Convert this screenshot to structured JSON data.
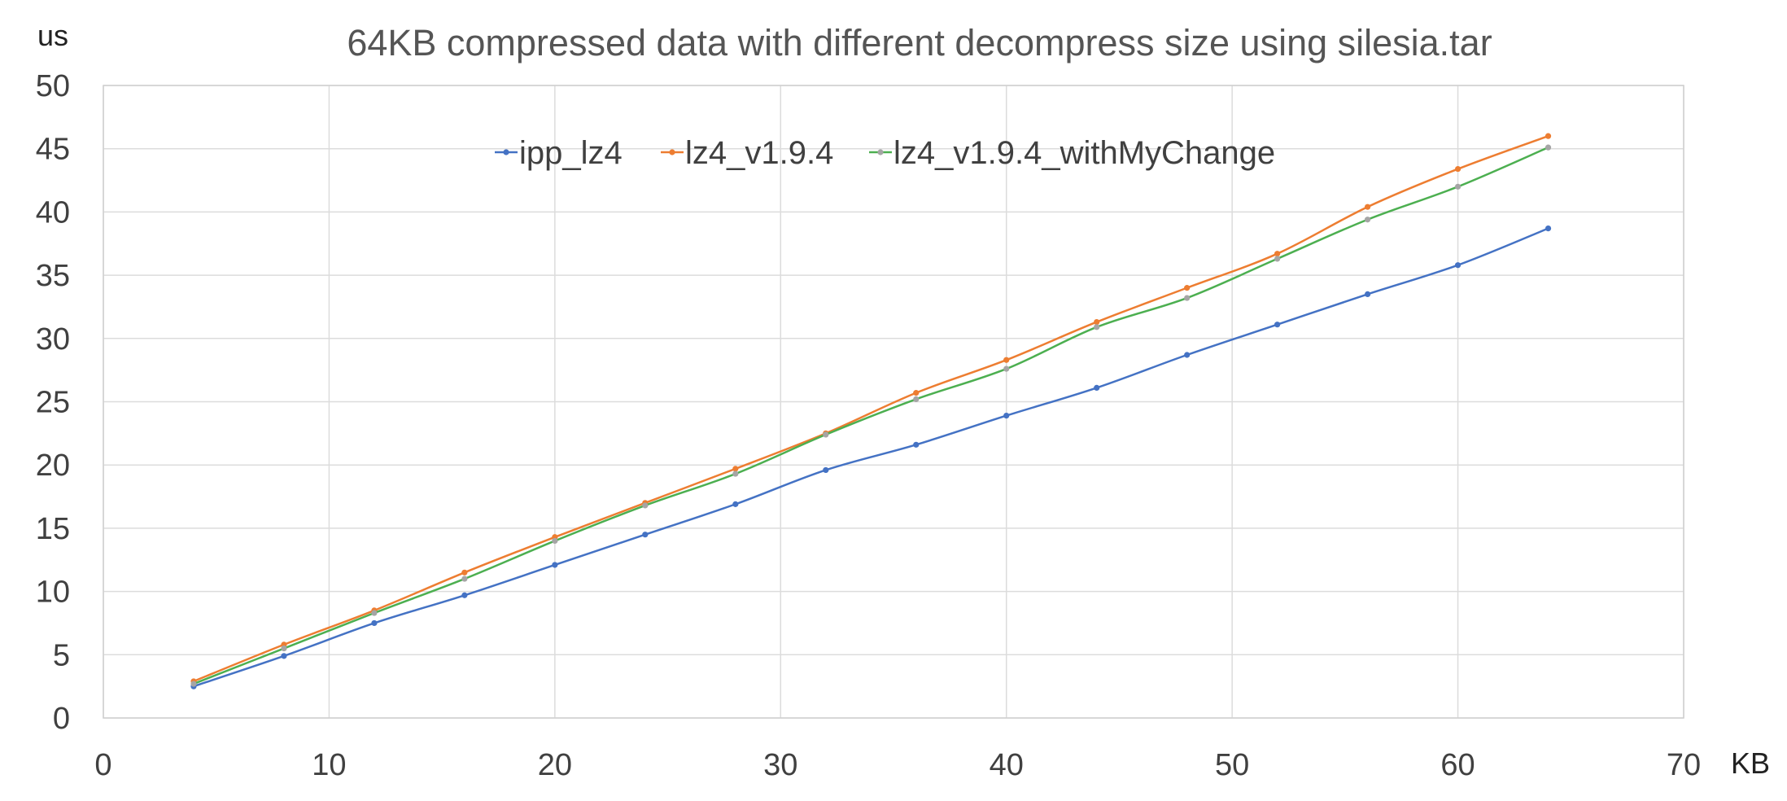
{
  "chart_data": {
    "type": "line",
    "title": "64KB compressed data with different decompress size using silesia.tar",
    "xlabel": "KB",
    "ylabel": "us",
    "xlim": [
      0,
      70
    ],
    "ylim": [
      0,
      50
    ],
    "x_ticks": [
      0,
      10,
      20,
      30,
      40,
      50,
      60,
      70
    ],
    "y_ticks": [
      0,
      5,
      10,
      15,
      20,
      25,
      30,
      35,
      40,
      45,
      50
    ],
    "grid": true,
    "legend_position": "top-center",
    "x": [
      4,
      8,
      12,
      16,
      20,
      24,
      28,
      32,
      36,
      40,
      44,
      48,
      52,
      56,
      60,
      64
    ],
    "series": [
      {
        "name": "ipp_lz4",
        "color": "#4472c4",
        "values": [
          2.5,
          4.9,
          7.5,
          9.7,
          12.1,
          14.5,
          16.9,
          19.6,
          21.6,
          23.9,
          26.1,
          28.7,
          31.1,
          33.5,
          35.8,
          38.7
        ]
      },
      {
        "name": "lz4_v1.9.4",
        "color": "#ed7d31",
        "values": [
          2.9,
          5.8,
          8.5,
          11.5,
          14.3,
          17.0,
          19.7,
          22.5,
          25.7,
          28.3,
          31.3,
          34.0,
          36.7,
          40.4,
          43.4,
          46.0
        ]
      },
      {
        "name": "lz4_v1.9.4_withMyChange",
        "color": "#4caf50",
        "marker_color": "#a5a5a5",
        "values": [
          2.7,
          5.5,
          8.3,
          11.0,
          14.0,
          16.8,
          19.3,
          22.4,
          25.2,
          27.6,
          30.9,
          33.2,
          36.3,
          39.4,
          42.0,
          45.1
        ]
      }
    ]
  }
}
